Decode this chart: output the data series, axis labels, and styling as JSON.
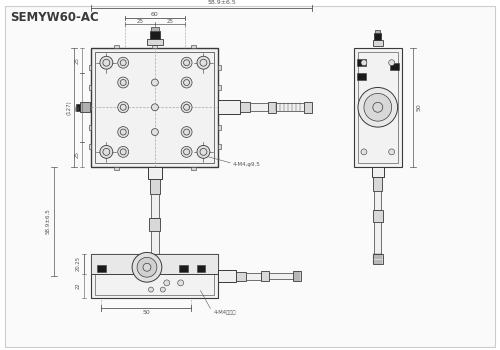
{
  "title": "SEMYW60-AC",
  "bg_color": "#ffffff",
  "line_color": "#3a3a3a",
  "dim_color": "#555555",
  "dash_color": "#aaaaaa",
  "fill_light": "#f0f0f0",
  "fill_mid": "#d8d8d8",
  "fill_dark": "#b0b0b0",
  "fill_black": "#1a1a1a",
  "border_color": "#cccccc",
  "title_fontsize": 8.5,
  "dim_fontsize": 5.0
}
